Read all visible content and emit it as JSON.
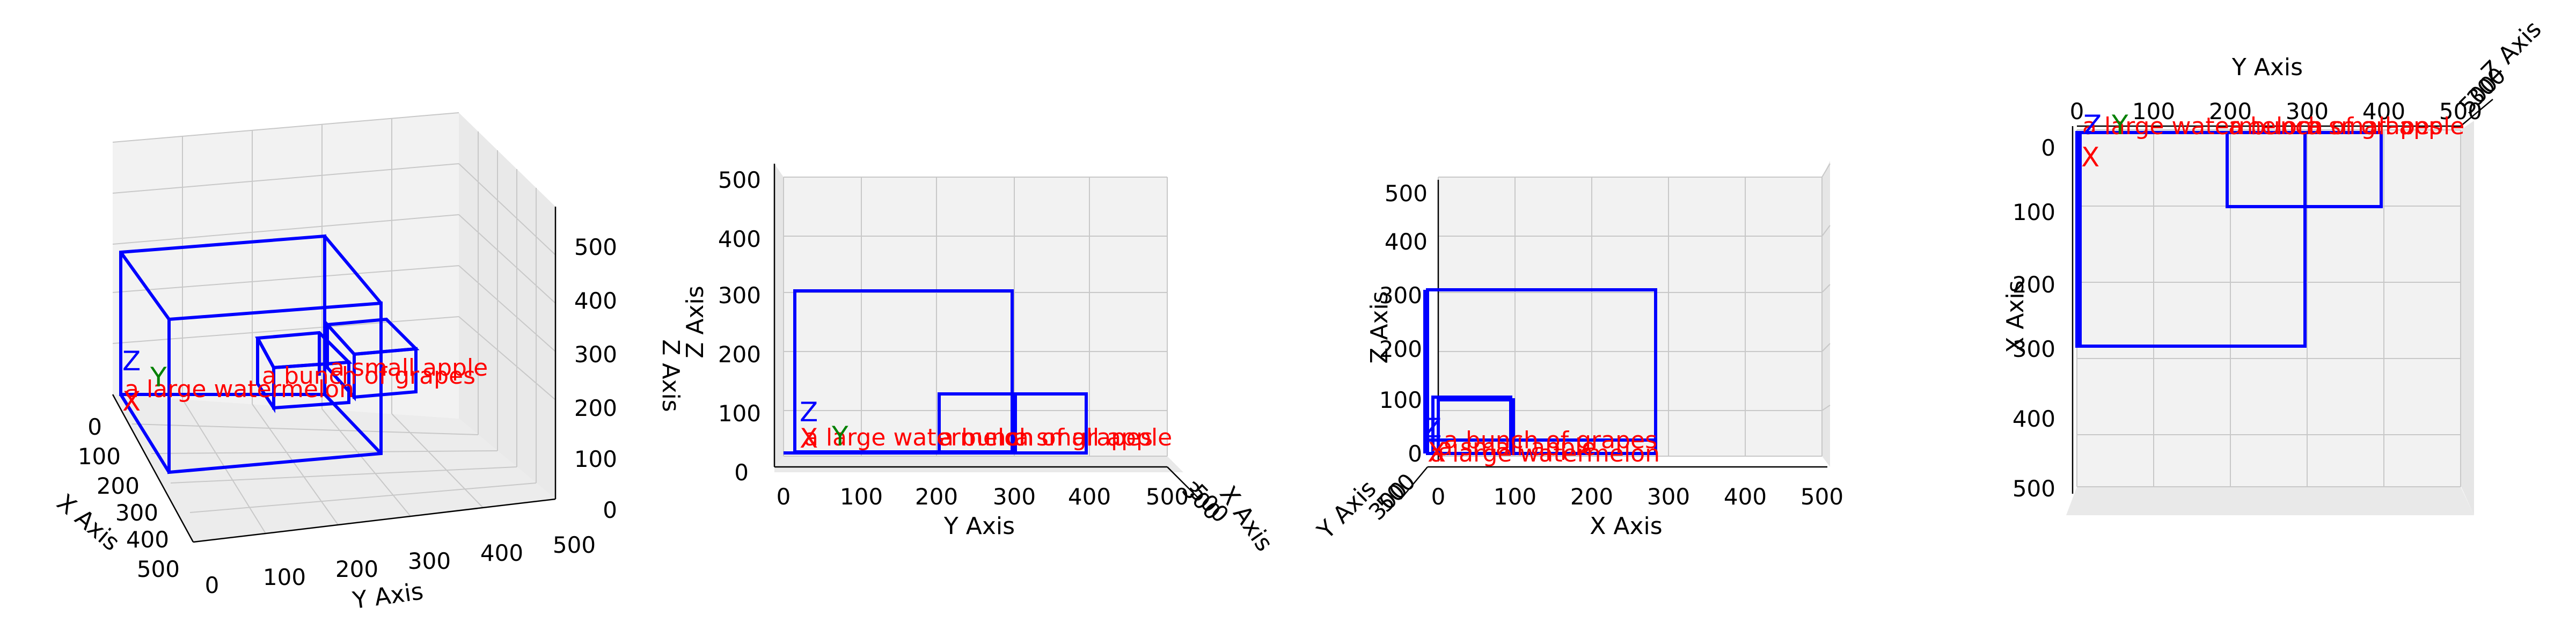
{
  "chart_data": {
    "type": "3d-box-views",
    "colors": {
      "box": "#0000ff",
      "label": "#ff0000",
      "x_marker": "#ff0000",
      "y_marker": "#008000",
      "z_marker": "#0000ff",
      "grid": "#c8c8c8",
      "pane": "#f2f2f2"
    },
    "axes": {
      "x_label": "X Axis",
      "y_label": "Y Axis",
      "z_label": "Z Axis"
    },
    "axis_ticks": {
      "x": [
        "0",
        "100",
        "200",
        "300",
        "400",
        "500"
      ],
      "y": [
        "0",
        "100",
        "200",
        "300",
        "400",
        "500"
      ],
      "z": [
        "0",
        "100",
        "200",
        "300",
        "400",
        "500"
      ]
    },
    "markers": {
      "x": "X",
      "y": "Y",
      "z": "Z"
    },
    "objects": [
      {
        "label": "a large watermelon",
        "box": [
          0,
          0,
          0,
          300,
          300,
          300
        ]
      },
      {
        "label": "a bunch of grapes",
        "box": [
          0,
          200,
          0,
          100,
          300,
          100
        ]
      },
      {
        "label": "a small apple",
        "box": [
          0,
          300,
          0,
          100,
          400,
          100
        ]
      }
    ],
    "views": [
      {
        "id": "perspective",
        "elev": 20,
        "azim": -75
      },
      {
        "id": "side-yz",
        "elev": 0,
        "azim": 0
      },
      {
        "id": "front-xz",
        "elev": 0,
        "azim": -90
      },
      {
        "id": "top-xy",
        "elev": 90,
        "azim": 0
      }
    ]
  }
}
